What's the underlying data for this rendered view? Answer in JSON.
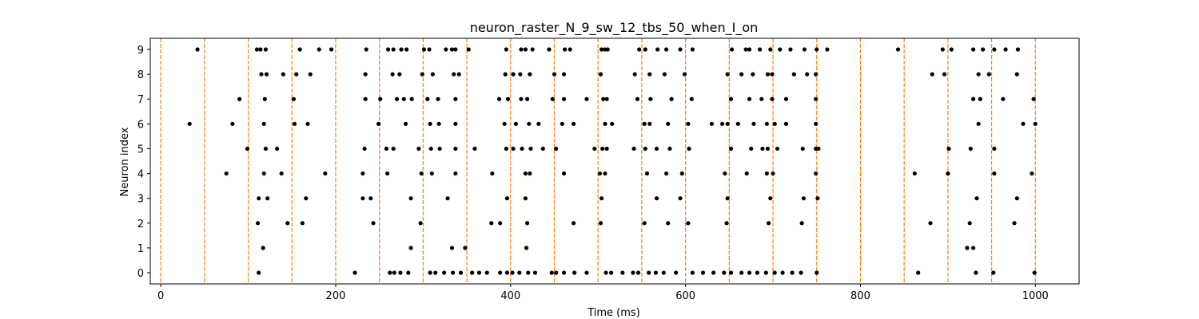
{
  "chart_data": {
    "type": "scatter",
    "title": "neuron_raster_N_9_sw_12_tbs_50_when_I_on",
    "xlabel": "Time (ms)",
    "ylabel": "Neuron index",
    "xlim": [
      -12,
      1050
    ],
    "ylim": [
      -0.45,
      9.45
    ],
    "xticks": [
      0,
      200,
      400,
      600,
      800,
      1000
    ],
    "yticks": [
      0,
      1,
      2,
      3,
      4,
      5,
      6,
      7,
      8,
      9
    ],
    "grid": false,
    "point_color": "#000000",
    "vline_color": "#ff7f0e",
    "vlines": [
      0,
      50,
      100,
      150,
      200,
      250,
      300,
      350,
      400,
      450,
      500,
      550,
      600,
      650,
      700,
      750,
      800,
      850,
      900,
      950,
      1000
    ],
    "series": [
      {
        "values": [
          [
            112,
            0
          ],
          [
            222,
            0
          ],
          [
            262,
            0
          ],
          [
            267,
            0
          ],
          [
            274,
            0
          ],
          [
            283,
            0
          ],
          [
            308,
            0
          ],
          [
            314,
            0
          ],
          [
            324,
            0
          ],
          [
            334,
            0
          ],
          [
            343,
            0
          ],
          [
            356,
            0
          ],
          [
            364,
            0
          ],
          [
            373,
            0
          ],
          [
            388,
            0
          ],
          [
            396,
            0
          ],
          [
            402,
            0
          ],
          [
            410,
            0
          ],
          [
            420,
            0
          ],
          [
            428,
            0
          ],
          [
            447,
            0
          ],
          [
            452,
            0
          ],
          [
            461,
            0
          ],
          [
            473,
            0
          ],
          [
            487,
            0
          ],
          [
            509,
            0
          ],
          [
            515,
            0
          ],
          [
            528,
            0
          ],
          [
            540,
            0
          ],
          [
            546,
            0
          ],
          [
            558,
            0
          ],
          [
            566,
            0
          ],
          [
            575,
            0
          ],
          [
            589,
            0
          ],
          [
            608,
            0
          ],
          [
            620,
            0
          ],
          [
            632,
            0
          ],
          [
            644,
            0
          ],
          [
            652,
            0
          ],
          [
            664,
            0
          ],
          [
            673,
            0
          ],
          [
            682,
            0
          ],
          [
            692,
            0
          ],
          [
            702,
            0
          ],
          [
            711,
            0
          ],
          [
            722,
            0
          ],
          [
            732,
            0
          ],
          [
            750,
            0
          ],
          [
            866,
            0
          ],
          [
            932,
            0
          ],
          [
            952,
            0
          ],
          [
            999,
            0
          ]
        ]
      },
      {
        "values": [
          [
            117,
            1
          ],
          [
            286,
            1
          ],
          [
            333,
            1
          ],
          [
            348,
            1
          ],
          [
            418,
            1
          ],
          [
            922,
            1
          ],
          [
            929,
            1
          ]
        ]
      },
      {
        "values": [
          [
            111,
            2
          ],
          [
            145,
            2
          ],
          [
            162,
            2
          ],
          [
            243,
            2
          ],
          [
            297,
            2
          ],
          [
            378,
            2
          ],
          [
            388,
            2
          ],
          [
            419,
            2
          ],
          [
            472,
            2
          ],
          [
            503,
            2
          ],
          [
            553,
            2
          ],
          [
            580,
            2
          ],
          [
            603,
            2
          ],
          [
            647,
            2
          ],
          [
            695,
            2
          ],
          [
            733,
            2
          ],
          [
            880,
            2
          ],
          [
            925,
            2
          ],
          [
            976,
            2
          ]
        ]
      },
      {
        "values": [
          [
            112,
            3
          ],
          [
            122,
            3
          ],
          [
            166,
            3
          ],
          [
            231,
            3
          ],
          [
            240,
            3
          ],
          [
            286,
            3
          ],
          [
            328,
            3
          ],
          [
            396,
            3
          ],
          [
            417,
            3
          ],
          [
            504,
            3
          ],
          [
            567,
            3
          ],
          [
            594,
            3
          ],
          [
            648,
            3
          ],
          [
            697,
            3
          ],
          [
            735,
            3
          ],
          [
            751,
            3
          ],
          [
            933,
            3
          ],
          [
            979,
            3
          ]
        ]
      },
      {
        "values": [
          [
            75,
            4
          ],
          [
            118,
            4
          ],
          [
            138,
            4
          ],
          [
            188,
            4
          ],
          [
            231,
            4
          ],
          [
            259,
            4
          ],
          [
            298,
            4
          ],
          [
            310,
            4
          ],
          [
            337,
            4
          ],
          [
            379,
            4
          ],
          [
            417,
            4
          ],
          [
            422,
            4
          ],
          [
            461,
            4
          ],
          [
            502,
            4
          ],
          [
            508,
            4
          ],
          [
            556,
            4
          ],
          [
            578,
            4
          ],
          [
            596,
            4
          ],
          [
            645,
            4
          ],
          [
            670,
            4
          ],
          [
            693,
            4
          ],
          [
            700,
            4
          ],
          [
            749,
            4
          ],
          [
            862,
            4
          ],
          [
            900,
            4
          ],
          [
            953,
            4
          ],
          [
            996,
            4
          ]
        ]
      },
      {
        "values": [
          [
            99,
            5
          ],
          [
            120,
            5
          ],
          [
            133,
            5
          ],
          [
            233,
            5
          ],
          [
            258,
            5
          ],
          [
            266,
            5
          ],
          [
            295,
            5
          ],
          [
            309,
            5
          ],
          [
            319,
            5
          ],
          [
            337,
            5
          ],
          [
            359,
            5
          ],
          [
            395,
            5
          ],
          [
            403,
            5
          ],
          [
            413,
            5
          ],
          [
            423,
            5
          ],
          [
            437,
            5
          ],
          [
            452,
            5
          ],
          [
            496,
            5
          ],
          [
            505,
            5
          ],
          [
            510,
            5
          ],
          [
            541,
            5
          ],
          [
            554,
            5
          ],
          [
            567,
            5
          ],
          [
            582,
            5
          ],
          [
            604,
            5
          ],
          [
            652,
            5
          ],
          [
            675,
            5
          ],
          [
            688,
            5
          ],
          [
            694,
            5
          ],
          [
            705,
            5
          ],
          [
            734,
            5
          ],
          [
            749,
            5
          ],
          [
            752,
            5
          ],
          [
            901,
            5
          ],
          [
            926,
            5
          ],
          [
            953,
            5
          ]
        ]
      },
      {
        "values": [
          [
            33,
            6
          ],
          [
            82,
            6
          ],
          [
            118,
            6
          ],
          [
            153,
            6
          ],
          [
            168,
            6
          ],
          [
            249,
            6
          ],
          [
            280,
            6
          ],
          [
            308,
            6
          ],
          [
            318,
            6
          ],
          [
            337,
            6
          ],
          [
            393,
            6
          ],
          [
            406,
            6
          ],
          [
            421,
            6
          ],
          [
            432,
            6
          ],
          [
            459,
            6
          ],
          [
            472,
            6
          ],
          [
            508,
            6
          ],
          [
            516,
            6
          ],
          [
            553,
            6
          ],
          [
            559,
            6
          ],
          [
            580,
            6
          ],
          [
            603,
            6
          ],
          [
            630,
            6
          ],
          [
            642,
            6
          ],
          [
            648,
            6
          ],
          [
            660,
            6
          ],
          [
            678,
            6
          ],
          [
            693,
            6
          ],
          [
            702,
            6
          ],
          [
            715,
            6
          ],
          [
            749,
            6
          ],
          [
            935,
            6
          ],
          [
            986,
            6
          ],
          [
            1000,
            6
          ]
        ]
      },
      {
        "values": [
          [
            90,
            7
          ],
          [
            119,
            7
          ],
          [
            152,
            7
          ],
          [
            234,
            7
          ],
          [
            251,
            7
          ],
          [
            270,
            7
          ],
          [
            278,
            7
          ],
          [
            287,
            7
          ],
          [
            305,
            7
          ],
          [
            317,
            7
          ],
          [
            337,
            7
          ],
          [
            387,
            7
          ],
          [
            397,
            7
          ],
          [
            412,
            7
          ],
          [
            419,
            7
          ],
          [
            448,
            7
          ],
          [
            461,
            7
          ],
          [
            487,
            7
          ],
          [
            506,
            7
          ],
          [
            510,
            7
          ],
          [
            545,
            7
          ],
          [
            560,
            7
          ],
          [
            584,
            7
          ],
          [
            607,
            7
          ],
          [
            652,
            7
          ],
          [
            673,
            7
          ],
          [
            687,
            7
          ],
          [
            699,
            7
          ],
          [
            715,
            7
          ],
          [
            749,
            7
          ],
          [
            929,
            7
          ],
          [
            937,
            7
          ],
          [
            963,
            7
          ],
          [
            998,
            7
          ]
        ]
      },
      {
        "values": [
          [
            115,
            8
          ],
          [
            121,
            8
          ],
          [
            140,
            8
          ],
          [
            155,
            8
          ],
          [
            171,
            8
          ],
          [
            234,
            8
          ],
          [
            265,
            8
          ],
          [
            273,
            8
          ],
          [
            299,
            8
          ],
          [
            311,
            8
          ],
          [
            335,
            8
          ],
          [
            341,
            8
          ],
          [
            394,
            8
          ],
          [
            403,
            8
          ],
          [
            411,
            8
          ],
          [
            422,
            8
          ],
          [
            450,
            8
          ],
          [
            461,
            8
          ],
          [
            503,
            8
          ],
          [
            542,
            8
          ],
          [
            559,
            8
          ],
          [
            576,
            8
          ],
          [
            599,
            8
          ],
          [
            648,
            8
          ],
          [
            664,
            8
          ],
          [
            677,
            8
          ],
          [
            694,
            8
          ],
          [
            699,
            8
          ],
          [
            724,
            8
          ],
          [
            739,
            8
          ],
          [
            749,
            8
          ],
          [
            882,
            8
          ],
          [
            896,
            8
          ],
          [
            935,
            8
          ],
          [
            947,
            8
          ],
          [
            979,
            8
          ]
        ]
      },
      {
        "values": [
          [
            42,
            9
          ],
          [
            110,
            9
          ],
          [
            114,
            9
          ],
          [
            120,
            9
          ],
          [
            159,
            9
          ],
          [
            181,
            9
          ],
          [
            195,
            9
          ],
          [
            235,
            9
          ],
          [
            260,
            9
          ],
          [
            266,
            9
          ],
          [
            275,
            9
          ],
          [
            281,
            9
          ],
          [
            301,
            9
          ],
          [
            307,
            9
          ],
          [
            326,
            9
          ],
          [
            333,
            9
          ],
          [
            337,
            9
          ],
          [
            352,
            9
          ],
          [
            395,
            9
          ],
          [
            412,
            9
          ],
          [
            417,
            9
          ],
          [
            425,
            9
          ],
          [
            444,
            9
          ],
          [
            462,
            9
          ],
          [
            468,
            9
          ],
          [
            504,
            9
          ],
          [
            508,
            9
          ],
          [
            511,
            9
          ],
          [
            547,
            9
          ],
          [
            554,
            9
          ],
          [
            568,
            9
          ],
          [
            578,
            9
          ],
          [
            594,
            9
          ],
          [
            608,
            9
          ],
          [
            653,
            9
          ],
          [
            669,
            9
          ],
          [
            673,
            9
          ],
          [
            685,
            9
          ],
          [
            697,
            9
          ],
          [
            708,
            9
          ],
          [
            720,
            9
          ],
          [
            736,
            9
          ],
          [
            750,
            9
          ],
          [
            762,
            9
          ],
          [
            843,
            9
          ],
          [
            894,
            9
          ],
          [
            904,
            9
          ],
          [
            929,
            9
          ],
          [
            940,
            9
          ],
          [
            953,
            9
          ],
          [
            966,
            9
          ],
          [
            980,
            9
          ]
        ]
      }
    ]
  }
}
